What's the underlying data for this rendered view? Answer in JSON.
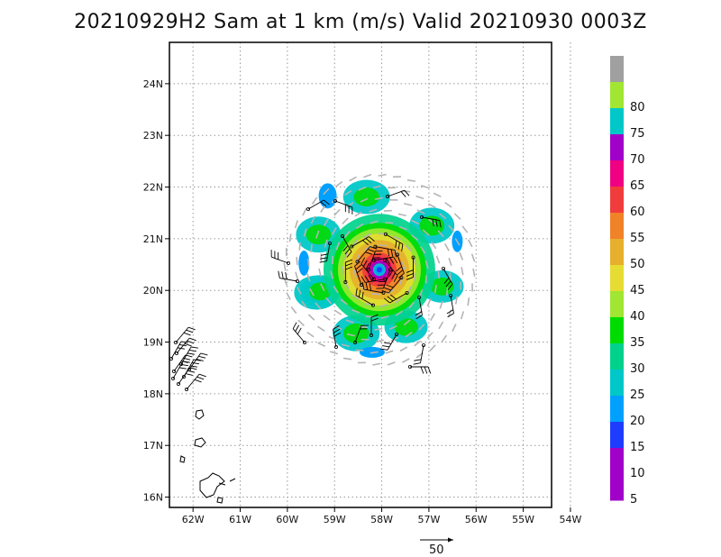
{
  "title": "20210929H2 Sam at 1 km (m/s) Valid 20210930 0003Z",
  "map": {
    "lon_range": [
      -62.5,
      -54.4
    ],
    "lat_range": [
      15.8,
      24.8
    ],
    "lon_ticks": [
      {
        "value": -62,
        "label": "62W"
      },
      {
        "value": -61,
        "label": "61W"
      },
      {
        "value": -60,
        "label": "60W"
      },
      {
        "value": -59,
        "label": "59W"
      },
      {
        "value": -58,
        "label": "58W"
      },
      {
        "value": -57,
        "label": "57W"
      },
      {
        "value": -56,
        "label": "56W"
      },
      {
        "value": -55,
        "label": "55W"
      },
      {
        "value": -54,
        "label": "54W"
      }
    ],
    "lat_ticks": [
      {
        "value": 16,
        "label": "16N"
      },
      {
        "value": 17,
        "label": "17N"
      },
      {
        "value": 18,
        "label": "18N"
      },
      {
        "value": 19,
        "label": "19N"
      },
      {
        "value": 20,
        "label": "20N"
      },
      {
        "value": 21,
        "label": "21N"
      },
      {
        "value": 22,
        "label": "22N"
      },
      {
        "value": 23,
        "label": "23N"
      },
      {
        "value": 24,
        "label": "24N"
      }
    ],
    "gridlines": "dotted",
    "storm_center": {
      "lon": -58.05,
      "lat": 20.4
    }
  },
  "colorbar": {
    "levels": [
      {
        "label": "",
        "color": "#a0a0a0"
      },
      {
        "label": "80",
        "color": "#a0e632"
      },
      {
        "label": "75",
        "color": "#00c8c8"
      },
      {
        "label": "70",
        "color": "#a000c8"
      },
      {
        "label": "65",
        "color": "#f00082"
      },
      {
        "label": "60",
        "color": "#f03c3c"
      },
      {
        "label": "55",
        "color": "#f08228"
      },
      {
        "label": "50",
        "color": "#e6af2d"
      },
      {
        "label": "45",
        "color": "#e6dc32"
      },
      {
        "label": "40",
        "color": "#a0e632"
      },
      {
        "label": "35",
        "color": "#00dc00"
      },
      {
        "label": "30",
        "color": "#00d28c"
      },
      {
        "label": "25",
        "color": "#00c8c8"
      },
      {
        "label": "20",
        "color": "#00a0ff"
      },
      {
        "label": "15",
        "color": "#1e3cff"
      },
      {
        "label": "10",
        "color": "#a000c8"
      },
      {
        "label": "5",
        "color": "#a000c8"
      }
    ]
  },
  "reference_vector": {
    "label": "50"
  }
}
